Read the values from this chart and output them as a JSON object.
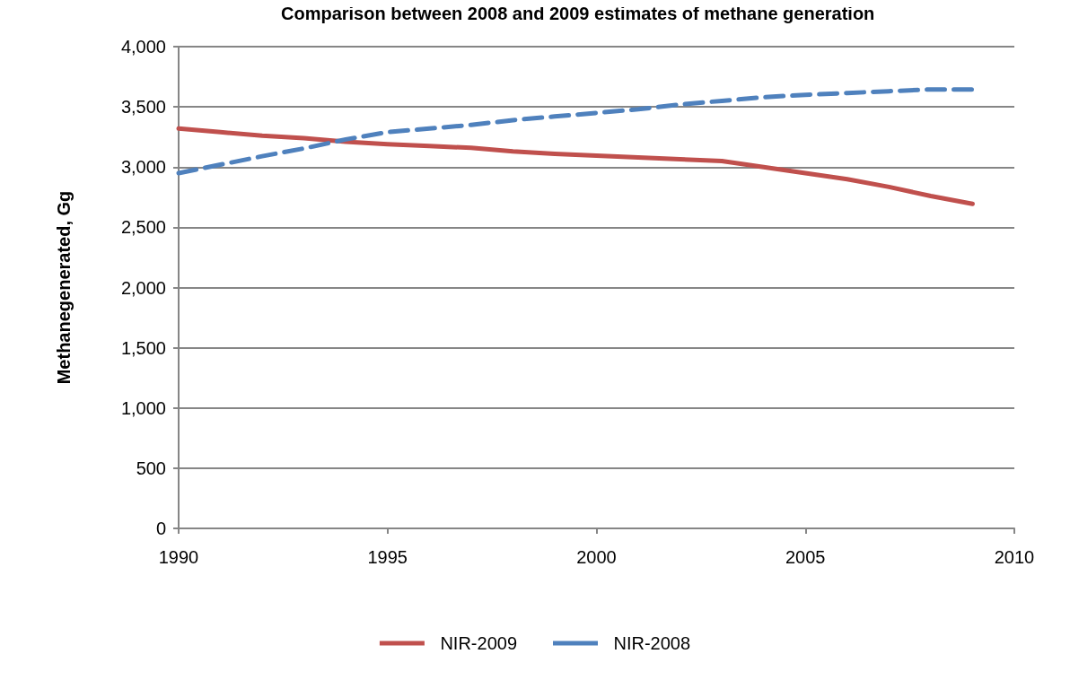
{
  "chart_data": {
    "type": "line",
    "title": "Comparison between 2008 and 2009 estimates of methane generation",
    "ylabel": "Methanegenerated, Gg",
    "x": [
      1990,
      1991,
      1992,
      1993,
      1994,
      1995,
      1996,
      1997,
      1998,
      1999,
      2000,
      2001,
      2002,
      2003,
      2004,
      2005,
      2006,
      2007,
      2008,
      2009
    ],
    "series": [
      {
        "name": "NIR-2009",
        "color": "#c0504d",
        "line_style": "solid",
        "values": [
          3320,
          3290,
          3260,
          3240,
          3210,
          3190,
          3175,
          3160,
          3130,
          3110,
          3095,
          3080,
          3065,
          3050,
          3000,
          2950,
          2900,
          2835,
          2760,
          2695
        ]
      },
      {
        "name": "NIR-2008",
        "color": "#4f81bd",
        "line_style": "dashed",
        "values": [
          2950,
          3020,
          3090,
          3155,
          3230,
          3290,
          3320,
          3350,
          3390,
          3420,
          3450,
          3480,
          3520,
          3550,
          3580,
          3600,
          3615,
          3630,
          3645,
          3645
        ]
      }
    ],
    "xlim": [
      1990,
      2010
    ],
    "xticks": [
      1990,
      1995,
      2000,
      2005,
      2010
    ],
    "ylim": [
      0,
      4000
    ],
    "yticks": [
      0,
      500,
      {
        "value": 1000,
        "label": "1,000"
      },
      {
        "value": 1500,
        "label": "1,500"
      },
      {
        "value": 2000,
        "label": "2,000"
      },
      {
        "value": 2500,
        "label": "2,500"
      },
      {
        "value": 3000,
        "label": "3,000"
      },
      {
        "value": 3500,
        "label": "3,500"
      },
      {
        "value": 4000,
        "label": "4,000"
      }
    ],
    "grid": "y",
    "legend": "bottom",
    "marker": "none"
  }
}
